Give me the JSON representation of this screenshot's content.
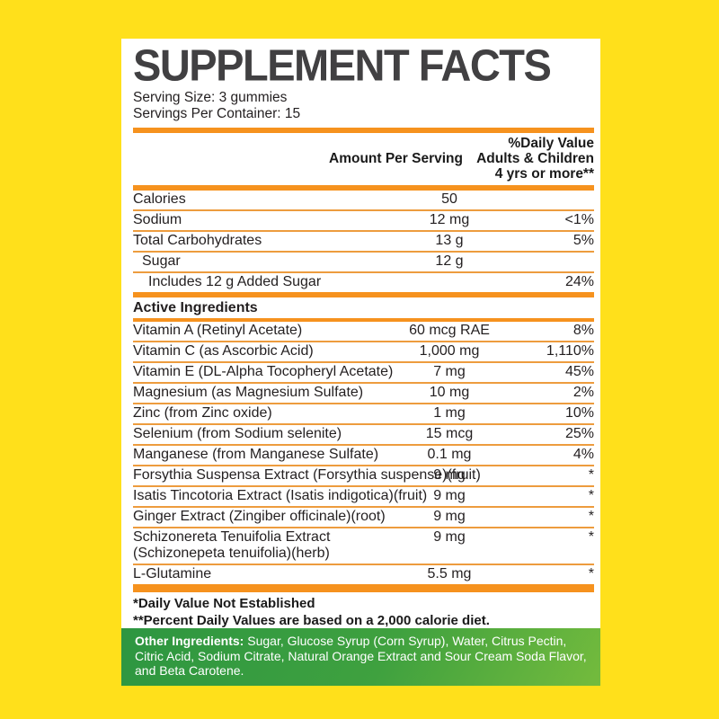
{
  "label": {
    "title": "SUPPLEMENT FACTS",
    "serving_size": "Serving Size: 3 gummies",
    "servings_per_container": "Servings Per Container: 15",
    "header": {
      "amount": "Amount Per Serving",
      "dv_line1": "%Daily Value",
      "dv_line2": "Adults & Children",
      "dv_line3": "4 yrs or more**"
    },
    "nutrition_rows": [
      {
        "name": "Calories",
        "amount": "50",
        "dv": "",
        "indent": 0
      },
      {
        "name": "Sodium",
        "amount": "12 mg",
        "dv": "<1%",
        "indent": 0
      },
      {
        "name": "Total Carbohydrates",
        "amount": "13 g",
        "dv": "5%",
        "indent": 0
      },
      {
        "name": "Sugar",
        "amount": "12 g",
        "dv": "",
        "indent": 1
      },
      {
        "name": "Includes 12 g Added Sugar",
        "amount": "",
        "dv": "24%",
        "indent": 2
      }
    ],
    "active_ingredients_heading": "Active Ingredients",
    "active_rows": [
      {
        "name": "Vitamin A (Retinyl Acetate)",
        "amount": "60 mcg RAE",
        "dv": "8%"
      },
      {
        "name": "Vitamin C (as Ascorbic Acid)",
        "amount": "1,000 mg",
        "dv": "1,110%"
      },
      {
        "name": "Vitamin E (DL-Alpha Tocopheryl Acetate)",
        "amount": "7 mg",
        "dv": "45%"
      },
      {
        "name": "Magnesium (as Magnesium Sulfate)",
        "amount": "10 mg",
        "dv": "2%"
      },
      {
        "name": "Zinc (from Zinc oxide)",
        "amount": "1 mg",
        "dv": "10%"
      },
      {
        "name": "Selenium (from Sodium selenite)",
        "amount": "15 mcg",
        "dv": "25%"
      },
      {
        "name": "Manganese (from Manganese Sulfate)",
        "amount": "0.1 mg",
        "dv": "4%"
      },
      {
        "name": "Forsythia Suspensa Extract (Forsythia suspense)(fruit)",
        "amount": "9 mg",
        "dv": "*"
      },
      {
        "name": "Isatis Tincotoria Extract (Isatis indigotica)(fruit)",
        "amount": "9 mg",
        "dv": "*"
      },
      {
        "name": "Ginger Extract (Zingiber officinale)(root)",
        "amount": "9 mg",
        "dv": "*"
      },
      {
        "name": "Schizonereta Tenuifolia Extract",
        "name_line2": "(Schizonepeta tenuifolia)(herb)",
        "amount": "9 mg",
        "dv": "*"
      },
      {
        "name": "L-Glutamine",
        "amount": "5.5 mg",
        "dv": "*"
      }
    ],
    "footnotes": [
      "*Daily Value Not Established",
      "**Percent Daily Values are based on a 2,000 calorie diet."
    ],
    "other_ingredients": {
      "label": "Other Ingredients:",
      "text": "Sugar, Glucose Syrup (Corn Syrup), Water, Citrus Pectin, Citric Acid, Sodium Citrate, Natural Orange Extract and Sour Cream Soda Flavor, and Beta Carotene."
    },
    "colors": {
      "background_yellow": "#FFE01B",
      "accent_orange": "#F6921E",
      "divider_orange": "#ED9C3E",
      "title_gray": "#414042",
      "green_gradient_start": "#2D9641",
      "green_gradient_end": "#74BB3D"
    }
  }
}
